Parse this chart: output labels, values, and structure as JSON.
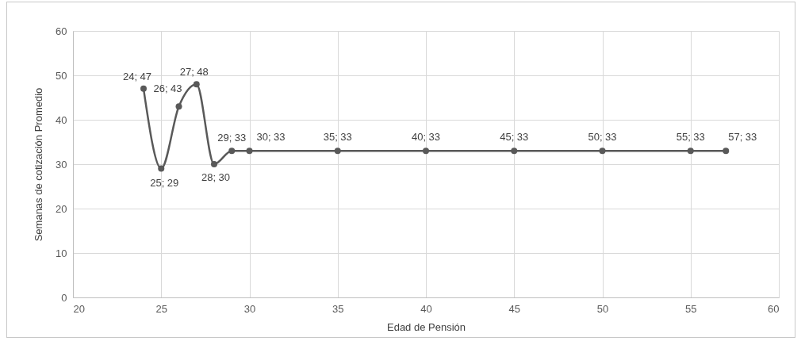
{
  "chart_data": {
    "type": "line",
    "xlabel": "Edad de Pensión",
    "ylabel": "Semanas de cotización Promedio",
    "x": [
      24,
      25,
      26,
      27,
      28,
      29,
      30,
      35,
      40,
      45,
      50,
      55,
      57
    ],
    "values": [
      47,
      29,
      43,
      48,
      30,
      33,
      33,
      33,
      33,
      33,
      33,
      33,
      33
    ],
    "value_labels": [
      "24; 47",
      "25; 29",
      "26; 43",
      "27; 48",
      "28; 30",
      "29; 33",
      "30; 33",
      "35; 33",
      "40; 33",
      "45; 33",
      "50; 33",
      "55; 33",
      "57; 33"
    ],
    "color": "#595959",
    "xlim": [
      20,
      60
    ],
    "xticks": [
      20,
      25,
      30,
      35,
      40,
      45,
      50,
      55,
      60
    ],
    "ylim": [
      0,
      60
    ],
    "yticks": [
      0,
      10,
      20,
      30,
      40,
      50,
      60
    ],
    "grid": true,
    "marker": "circle",
    "line_style": "solid"
  }
}
